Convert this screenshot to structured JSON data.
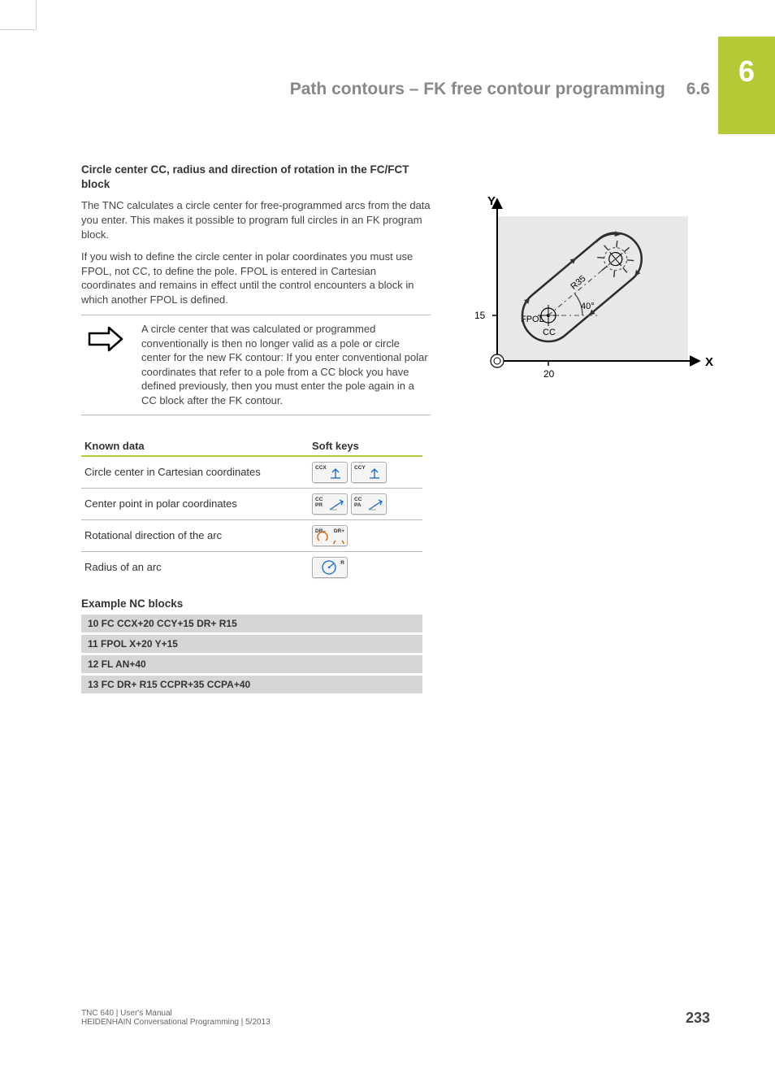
{
  "chapter_tab": "6",
  "header": {
    "title": "Path contours – FK free contour programming",
    "section": "6.6"
  },
  "section": {
    "heading": "Circle center CC, radius and direction of rotation in the FC/FCT block",
    "p1": "The TNC calculates a circle center for free-programmed arcs from the data you enter. This makes it possible to program full circles in an FK program block.",
    "p2": "If you wish to define the circle center in polar coordinates you must use FPOL, not CC, to define the pole. FPOL is entered in Cartesian coordinates and remains in effect until the control encounters a block in which another FPOL is defined.",
    "note": "A circle center that was calculated or programmed conventionally is then no longer valid as a pole or circle center for the new FK contour: If you enter conventional polar coordinates that refer to a pole from a CC block you have defined previously, then you must enter the pole again in a CC block after the FK contour."
  },
  "table": {
    "col1": "Known data",
    "col2": "Soft keys",
    "rows": [
      {
        "label": "Circle center in Cartesian coordinates",
        "keys": [
          {
            "t": "CCX"
          },
          {
            "t": "CCY"
          }
        ]
      },
      {
        "label": "Center point in polar coordinates",
        "keys": [
          {
            "t": "CC",
            "t2": "PR"
          },
          {
            "t": "CC",
            "t2": "PA"
          }
        ]
      },
      {
        "label": "Rotational direction of the arc",
        "keys": [
          {
            "t": "DR–",
            "t_right": "DR+"
          }
        ]
      },
      {
        "label": "Radius of an arc",
        "keys": [
          {
            "t_right": "R"
          }
        ]
      }
    ]
  },
  "example": {
    "title": "Example NC blocks",
    "lines": [
      "10 FC CCX+20 CCY+15 DR+ R15",
      "11 FPOL X+20 Y+15",
      "12 FL AN+40",
      "13 FC DR+ R15 CCPR+35 CCPA+40"
    ]
  },
  "diagram": {
    "axis_x_label": "X",
    "axis_y_label": "Y",
    "x_tick": "20",
    "y_tick": "15",
    "fpol_label": "FPOL",
    "cc_label": "CC",
    "angle_label": "40°",
    "radius_label": "R35",
    "colors": {
      "bg": "#e8e8e8",
      "axis": "#000000",
      "contour": "#2a2a2a",
      "dash": "#555555"
    }
  },
  "footer": {
    "l1": "TNC 640 | User's Manual",
    "l2": "HEIDENHAIN Conversational Programming | 5/2013",
    "page": "233"
  }
}
